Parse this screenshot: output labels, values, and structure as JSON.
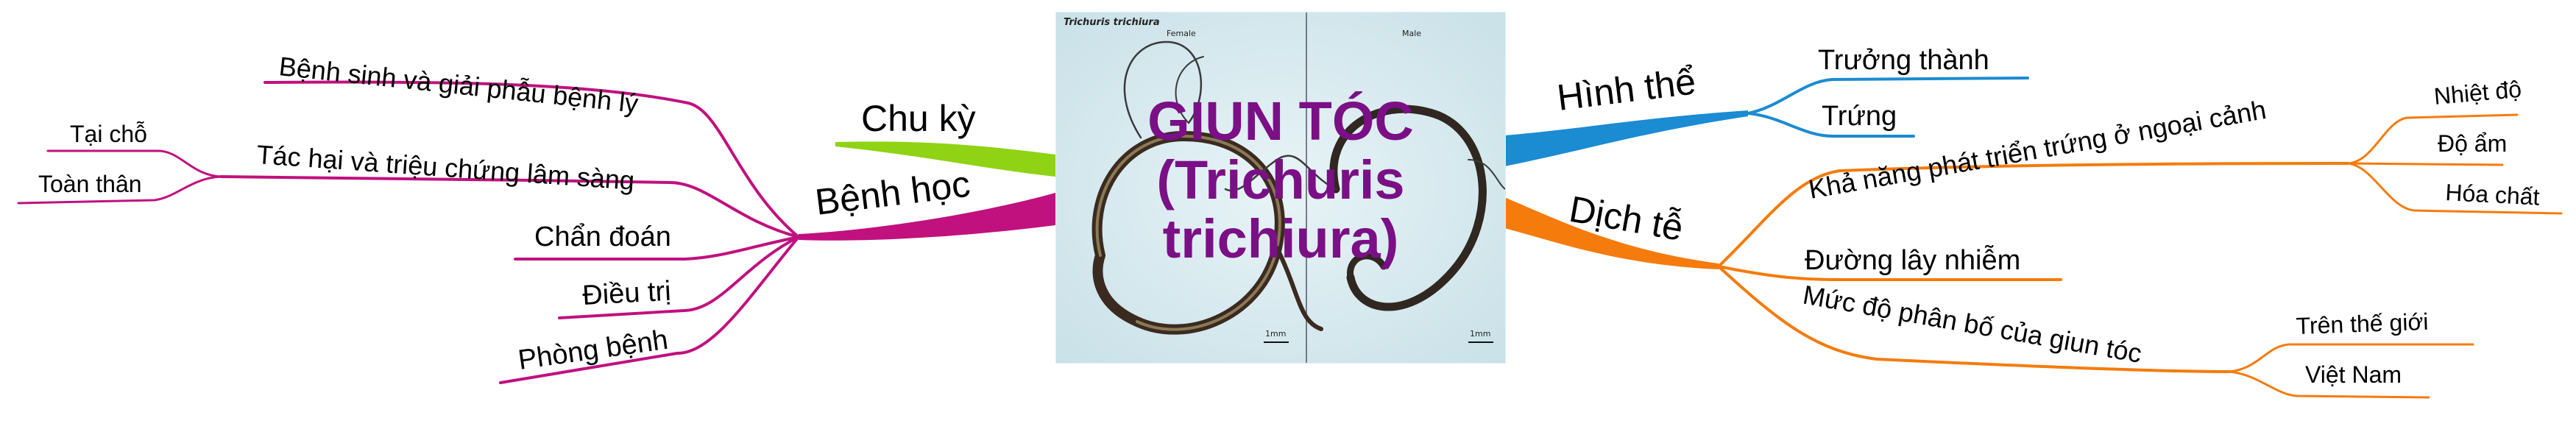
{
  "center": {
    "title_line1": "GIUN TÓC",
    "title_line2": "(Trichuris",
    "title_line3": "trichiura)",
    "photo_caption": "Trichuris trichiura",
    "label_female": "Female",
    "label_male": "Male",
    "scale_left": "1mm",
    "scale_right": "1mm",
    "colors": {
      "title": "#7b0f86",
      "photo_bg": "#dcecf1"
    }
  },
  "branches": {
    "chu_ky": {
      "label": "Chu kỳ",
      "color": "#8fd314"
    },
    "benh_hoc": {
      "label": "Bệnh học",
      "color": "#c0117f",
      "children": {
        "benh_sinh": "Bệnh sinh và giải phẫu bệnh lý",
        "tac_hai": "Tác hại và triệu chứng lâm sàng",
        "tai_cho": "Tại chỗ",
        "toan_than": "Toàn thân",
        "chan_doan": "Chẩn đoán",
        "dieu_tri": "Điều trị",
        "phong_benh": "Phòng bệnh"
      }
    },
    "hinh_the": {
      "label": "Hình thể",
      "color": "#1b8bd2",
      "children": {
        "truong_thanh": "Trưởng thành",
        "trung": "Trứng"
      }
    },
    "dich_te": {
      "label": "Dịch tễ",
      "color": "#f57b0c",
      "children": {
        "kha_nang": "Khả năng phát triển trứng ở ngoại cảnh",
        "nhiet_do": "Nhiệt độ",
        "do_am": "Độ ẩm",
        "hoa_chat": "Hóa chất",
        "duong_lay": "Đường lây nhiễm",
        "muc_do": "Mức độ phân bố của giun tóc",
        "tren_the_gioi": "Trên thế giới",
        "viet_nam": "Việt Nam"
      }
    }
  }
}
